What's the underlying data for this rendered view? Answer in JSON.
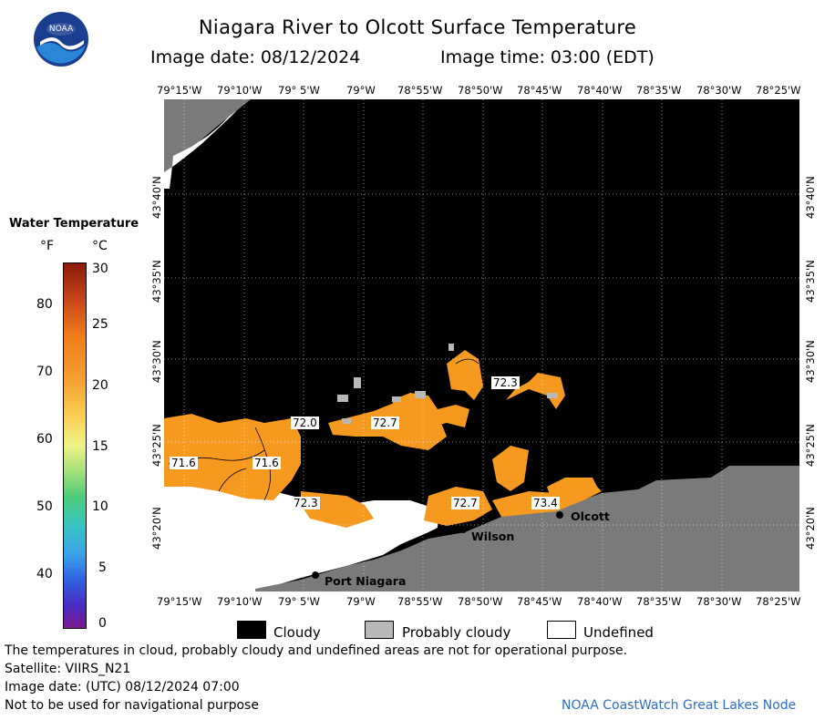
{
  "header": {
    "title": "Niagara River to Olcott Surface Temperature",
    "image_date": "Image date: 08/12/2024",
    "image_time": "Image time: 03:00 (EDT)"
  },
  "logo": {
    "text": "NOAA"
  },
  "map": {
    "lon_ticks": [
      "79°15'W",
      "79°10'W",
      "79° 5'W",
      "79°W",
      "78°55'W",
      "78°50'W",
      "78°45'W",
      "78°40'W",
      "78°35'W",
      "78°30'W",
      "78°25'W"
    ],
    "lat_ticks": [
      "43°40'N",
      "43°35'N",
      "43°30'N",
      "43°25'N",
      "43°20'N"
    ],
    "temp_labels": [
      "72.3",
      "72.0",
      "72.7",
      "71.6",
      "71.6",
      "72.3",
      "72.7",
      "73.4"
    ],
    "places": {
      "olcott": "Olcott",
      "wilson": "Wilson",
      "port_niagara": "Port Niagara"
    },
    "colors": {
      "cloud": "#000000",
      "land": "#7a7a7a",
      "undefined": "#ffffff",
      "water_warm": "#f59a1f",
      "probably_cloudy": "#b8b8b8"
    }
  },
  "legend": {
    "title": "Water Temperature",
    "unit_f": "°F",
    "unit_c": "°C",
    "f_ticks": [
      "80",
      "70",
      "60",
      "50",
      "40"
    ],
    "c_ticks": [
      "30",
      "25",
      "20",
      "15",
      "10",
      "5",
      "0"
    ]
  },
  "key": {
    "cloudy": "Cloudy",
    "probably_cloudy": "Probably cloudy",
    "undefined": "Undefined"
  },
  "footer": {
    "note": "The temperatures in cloud, probably cloudy and undefined areas are not for operational purpose.",
    "satellite": "Satellite: VIIRS_N21",
    "utc_date": "Image date: (UTC) 08/12/2024  07:00",
    "nav_warning": "Not to be used for navigational purpose",
    "credit": "NOAA CoastWatch Great Lakes Node"
  }
}
